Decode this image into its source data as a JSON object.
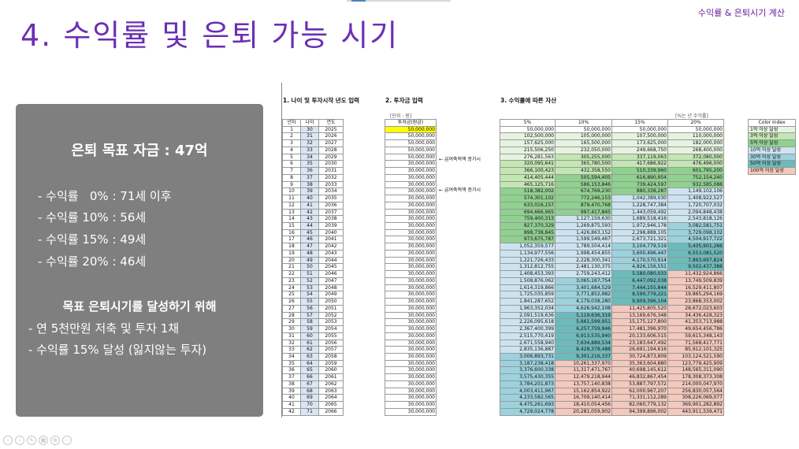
{
  "header": {
    "title": "4. 수익률 및 은퇴 가능 시기",
    "corner_label": "수익률 & 은퇴시기 계산"
  },
  "panel": {
    "goal": "은퇴 목표 자금 : 47억",
    "bullets": [
      "- 수익률   0% : 71세 이후",
      "- 수익률 10% : 56세",
      "- 수익률 15% : 49세",
      "- 수익률 20% : 46세"
    ],
    "heading2": "목표 은퇴시기를 달성하기 위해",
    "bullets2": [
      "- 연 5천만원 저축 및 투자 1채",
      "- 수익률 15% 달성 (잃지않는 투자)"
    ]
  },
  "sheet": {
    "section1": "1. 나이 및 투자시작 년도 입력",
    "section2": "2. 투자금 입력",
    "section3": "3. 수익률에 따른 자산",
    "unit_label": "[단위 : 원]",
    "rate_note": "[%는 년 수익률]",
    "arrow_labels": [
      "← 급여축적액 증가시",
      "← 급여축적액 증가시"
    ],
    "arrow_rows": [
      5,
      10
    ],
    "left_headers": [
      "년차",
      "나이",
      "연도"
    ],
    "invest_header": "투자금(원금)",
    "rate_headers": [
      "5%",
      "10%",
      "15%",
      "20%"
    ],
    "years": [
      "1",
      "2",
      "3",
      "4",
      "5",
      "6",
      "7",
      "8",
      "9",
      "10",
      "11",
      "12",
      "13",
      "14",
      "15",
      "16",
      "17",
      "18",
      "19",
      "20",
      "21",
      "22",
      "23",
      "24",
      "25",
      "26",
      "27",
      "28",
      "29",
      "30",
      "31",
      "32",
      "33",
      "34",
      "35",
      "36",
      "37",
      "38",
      "39",
      "40",
      "41",
      "42"
    ],
    "ages": [
      "30",
      "31",
      "32",
      "33",
      "34",
      "35",
      "36",
      "37",
      "38",
      "39",
      "40",
      "41",
      "42",
      "43",
      "44",
      "45",
      "46",
      "47",
      "48",
      "49",
      "50",
      "51",
      "52",
      "53",
      "54",
      "55",
      "56",
      "57",
      "58",
      "59",
      "60",
      "61",
      "62",
      "63",
      "64",
      "65",
      "66",
      "67",
      "68",
      "69",
      "70",
      "71"
    ],
    "yrs": [
      "2025",
      "2026",
      "2027",
      "2028",
      "2029",
      "2030",
      "2031",
      "2032",
      "2033",
      "2034",
      "2035",
      "2036",
      "2037",
      "2038",
      "2039",
      "2040",
      "2041",
      "2042",
      "2043",
      "2044",
      "2045",
      "2046",
      "2047",
      "2048",
      "2049",
      "2050",
      "2051",
      "2052",
      "2053",
      "2054",
      "2055",
      "2056",
      "2057",
      "2058",
      "2059",
      "2060",
      "2061",
      "2062",
      "2063",
      "2064",
      "2065",
      "2066"
    ],
    "invest": [
      "50,000,000",
      "50,000,000",
      "50,000,000",
      "50,000,000",
      "50,000,000",
      "30,000,000",
      "30,000,000",
      "30,000,000",
      "30,000,000",
      "30,000,000",
      "30,000,000",
      "30,000,000",
      "30,000,000",
      "30,000,000",
      "30,000,000",
      "30,000,000",
      "30,000,000",
      "30,000,000",
      "30,000,000",
      "30,000,000",
      "30,000,000",
      "30,000,000",
      "30,000,000",
      "30,000,000",
      "30,000,000",
      "30,000,000",
      "30,000,000",
      "30,000,000",
      "30,000,000",
      "30,000,000",
      "30,000,000",
      "30,000,000",
      "30,000,000",
      "30,000,000",
      "30,000,000",
      "30,000,000",
      "30,000,000",
      "30,000,000",
      "30,000,000",
      "30,000,000",
      "30,000,000",
      "30,000,000"
    ],
    "r5": [
      "50,000,000",
      "102,500,000",
      "157,625,000",
      "215,506,250",
      "276,281,563",
      "320,095,641",
      "366,100,423",
      "414,405,444",
      "465,125,716",
      "518,382,002",
      "574,301,102",
      "633,016,157",
      "694,666,965",
      "759,400,313",
      "827,370,329",
      "898,738,845",
      "973,675,787",
      "1,052,359,577",
      "1,134,977,556",
      "1,221,726,433",
      "1,312,812,755",
      "1,408,453,393",
      "1,508,876,062",
      "1,614,319,866",
      "1,725,035,859",
      "1,841,287,652",
      "1,963,352,034",
      "2,091,519,636",
      "2,226,095,618",
      "2,367,400,399",
      "2,515,770,419",
      "2,671,558,940",
      "2,835,136,887",
      "3,006,893,731",
      "3,187,238,418",
      "3,376,600,338",
      "3,575,430,355",
      "3,784,201,873",
      "4,003,411,967",
      "4,233,582,565",
      "4,475,261,693",
      "4,729,024,778"
    ],
    "r10": [
      "50,000,000",
      "105,000,000",
      "165,500,000",
      "232,050,000",
      "305,255,000",
      "365,780,500",
      "432,358,550",
      "505,594,405",
      "586,153,846",
      "674,769,230",
      "772,246,153",
      "879,470,768",
      "997,417,845",
      "1,127,159,630",
      "1,269,875,593",
      "1,426,863,152",
      "1,599,549,467",
      "1,789,504,414",
      "1,998,454,855",
      "2,228,300,341",
      "2,481,130,375",
      "2,759,243,412",
      "3,065,167,754",
      "3,401,684,529",
      "3,771,852,982",
      "4,179,038,280",
      "4,626,942,108",
      "5,119,636,319",
      "5,661,599,951",
      "6,257,759,946",
      "6,913,535,940",
      "7,634,889,534",
      "8,428,378,488",
      "9,301,216,337",
      "10,261,337,970",
      "11,317,471,767",
      "12,479,218,944",
      "13,757,140,838",
      "15,162,854,922",
      "16,709,140,414",
      "18,410,054,456",
      "20,281,059,902"
    ],
    "r15": [
      "50,000,000",
      "107,500,000",
      "173,625,000",
      "249,668,750",
      "337,119,063",
      "417,686,922",
      "510,339,960",
      "616,890,954",
      "739,424,597",
      "880,338,287",
      "1,042,389,030",
      "1,228,747,384",
      "1,443,059,492",
      "1,689,518,416",
      "1,972,946,178",
      "2,298,888,105",
      "2,673,721,321",
      "3,104,779,519",
      "3,600,496,447",
      "4,170,570,914",
      "4,826,156,551",
      "5,580,080,033",
      "6,447,092,038",
      "7,444,155,844",
      "8,590,779,221",
      "9,909,396,104",
      "11,425,805,520",
      "13,169,676,348",
      "15,175,127,800",
      "17,481,396,970",
      "20,133,606,515",
      "23,183,647,492",
      "26,691,194,616",
      "30,724,873,809",
      "35,363,604,880",
      "40,698,145,612",
      "46,832,867,454",
      "53,887,797,572",
      "62,000,967,207",
      "71,331,112,289",
      "82,060,779,132",
      "94,399,896,002"
    ],
    "r20": [
      "50,000,000",
      "110,000,000",
      "182,000,000",
      "268,400,000",
      "372,080,000",
      "476,496,000",
      "601,795,200",
      "752,154,240",
      "932,585,088",
      "1,149,102,106",
      "1,408,922,527",
      "1,720,707,032",
      "2,094,848,438",
      "2,543,818,126",
      "3,082,581,751",
      "3,729,098,102",
      "4,504,917,722",
      "5,435,901,266",
      "6,553,081,520",
      "7,893,697,824",
      "9,502,437,388",
      "11,432,924,866",
      "13,749,509,839",
      "16,529,411,807",
      "19,865,294,169",
      "23,868,353,002",
      "28,672,023,603",
      "34,436,428,323",
      "41,353,713,988",
      "49,654,456,786",
      "59,615,348,143",
      "71,568,417,771",
      "85,912,101,325",
      "103,124,521,590",
      "123,779,425,909",
      "148,565,311,090",
      "178,308,373,308",
      "214,000,047,970",
      "256,830,057,564",
      "308,226,069,077",
      "369,901,282,892",
      "443,911,539,471"
    ],
    "color_index": {
      "header": "Color Index",
      "items": [
        "1억 이상 달성",
        "3억 이상 달성",
        "5억 이상 달성",
        "10억 이상 달성",
        "30억 이상 달성",
        "50억 이상 달성",
        "100억 이상 달성"
      ],
      "colors": [
        "#e6f3e0",
        "#c3e6b3",
        "#8fd18f",
        "#cde4f0",
        "#9bd2de",
        "#6bbbbd",
        "#f3c8bd"
      ]
    }
  },
  "slide_nav": [
    "prev-icon",
    "next-icon",
    "pen-icon",
    "grid-icon",
    "zoom-icon",
    "more-icon"
  ]
}
